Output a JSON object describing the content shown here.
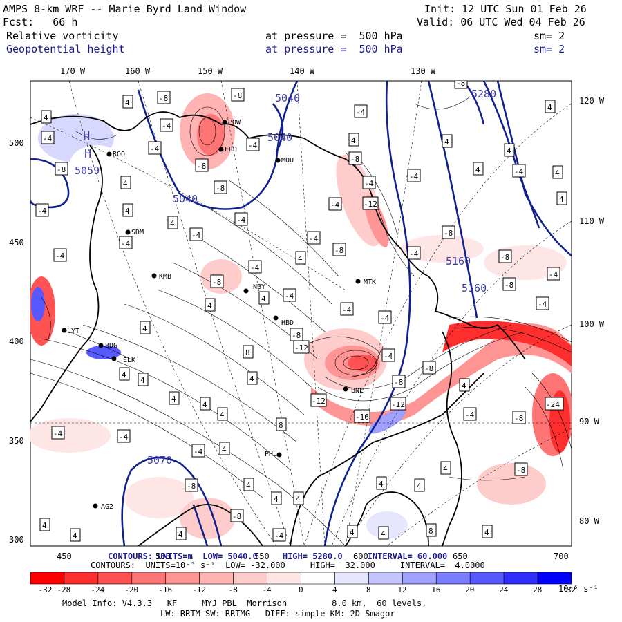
{
  "header": {
    "title": "AMPS 8-km WRF -- Marie Byrd Land Window",
    "init": "Init: 12 UTC Sun 01 Feb 26",
    "fcst": "Fcst:   66 h",
    "valid": "Valid: 06 UTC Wed 04 Feb 26",
    "field1": {
      "name": "Relative vorticity",
      "pressure": "at pressure =  500 hPa",
      "sm": "sm= 2"
    },
    "field2": {
      "name": "Geopotential height",
      "pressure": "at pressure =  500 hPa",
      "sm": "sm= 2"
    }
  },
  "axes": {
    "top_lon": [
      "170 W",
      "160 W",
      "150 W",
      "140 W",
      "130 W"
    ],
    "right_lon": [
      "120 W",
      "110 W",
      "100 W",
      "90 W",
      "80 W"
    ],
    "left_y": [
      "500",
      "450",
      "400",
      "350",
      "300"
    ],
    "bottom_x": [
      "450",
      "500",
      "550",
      "600",
      "650",
      "700"
    ]
  },
  "height_labels": [
    "5040",
    "5040",
    "5040",
    "5059",
    "5280",
    "5160",
    "5160",
    "5070"
  ],
  "stations": [
    "ROO",
    "POW",
    "ERD",
    "MOU",
    "SDM",
    "KMB",
    "NBY",
    "MTK",
    "HBD",
    "LYT",
    "BDG",
    "ELK",
    "BNE",
    "PHL",
    "AG2"
  ],
  "contour_info": {
    "line1": "CONTOURS: UNITS=m  LOW= 5040.0     HIGH= 5280.0     INTERVAL= 60.000",
    "line2": "CONTOURS:  UNITS=10⁻⁵ s⁻¹  LOW= -32.000     HIGH=  32.000     INTERVAL=  4.0000"
  },
  "colorbar": {
    "ticks": [
      "-32",
      "-28",
      "-24",
      "-20",
      "-16",
      "-12",
      "-8",
      "-4",
      "0",
      "4",
      "8",
      "12",
      "16",
      "20",
      "24",
      "28",
      "32"
    ],
    "unit": "10⁻⁵ s⁻¹",
    "colors": [
      "#ff0000",
      "#ff2e2e",
      "#ff5252",
      "#ff7474",
      "#ff9494",
      "#ffb3b3",
      "#ffcccc",
      "#ffe6e6",
      "#ffffff",
      "#ffffff",
      "#e6e6ff",
      "#c4c4ff",
      "#a0a0ff",
      "#7c7cff",
      "#5858ff",
      "#2e2eff",
      "#0000ff"
    ]
  },
  "model_info": {
    "line1": "Model Info: V4.3.3   KF     MYJ PBL  Morrison         8.0 km,  60 levels,",
    "line2": "LW: RRTM SW: RRTMG   DIFF: simple KM: 2D Smagor"
  },
  "vort_labels": [
    "4",
    "-4",
    "8",
    "-8",
    "12",
    "-12",
    "16",
    "-16",
    "24",
    "-24"
  ]
}
